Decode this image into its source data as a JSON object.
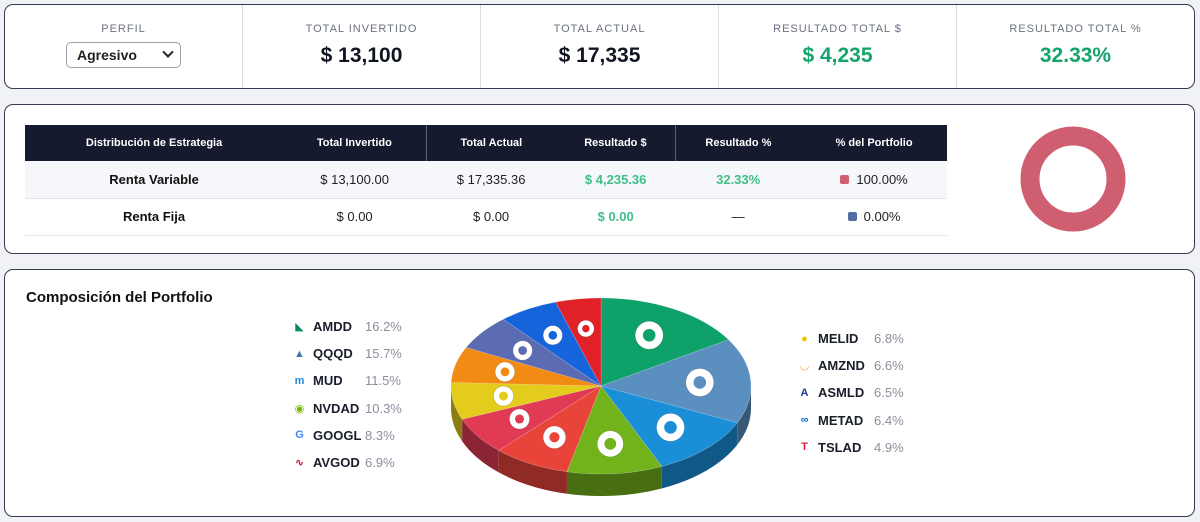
{
  "summary": {
    "perfil_label": "PERFIL",
    "perfil_value": "Agresivo",
    "total_invertido_label": "TOTAL INVERTIDO",
    "total_invertido_value": "$ 13,100",
    "total_actual_label": "TOTAL ACTUAL",
    "total_actual_value": "$ 17,335",
    "resultado_total_label": "RESULTADO TOTAL $",
    "resultado_total_value": "$ 4,235",
    "resultado_pct_label": "RESULTADO TOTAL %",
    "resultado_pct_value": "32.33%",
    "positive_color": "#13a36b"
  },
  "strategy": {
    "headers": [
      "Distribución de Estrategia",
      "Total Invertido",
      "Total Actual",
      "Resultado $",
      "Resultado %",
      "% del Portfolio"
    ],
    "rows": [
      {
        "name": "Renta Variable",
        "invertido": "$ 13,100.00",
        "actual": "$ 17,335.36",
        "resultado": "$ 4,235.36",
        "resultado_pct": "32.33%",
        "portfolio": "100.00%",
        "color": "#cf5f70"
      },
      {
        "name": "Renta Fija",
        "invertido": "$ 0.00",
        "actual": "$ 0.00",
        "resultado": "$ 0.00",
        "resultado_pct": "—",
        "portfolio": "0.00%",
        "color": "#4f6fa4"
      }
    ],
    "donut": {
      "values": [
        100,
        0
      ],
      "colors": [
        "#cf5f70",
        "#4f6fa4"
      ]
    }
  },
  "composition": {
    "title": "Composición del Portfolio",
    "legend_left": [
      {
        "ticker": "AMDD",
        "pct": "16.2%",
        "icon": "amd-logo-icon",
        "icon_color": "#0d8a5a"
      },
      {
        "ticker": "QQQD",
        "pct": "15.7%",
        "icon": "invesco-logo-icon",
        "icon_color": "#4a78a8"
      },
      {
        "ticker": "MUD",
        "pct": "11.5%",
        "icon": "micron-logo-icon",
        "icon_color": "#1e8fd6"
      },
      {
        "ticker": "NVDAD",
        "pct": "10.3%",
        "icon": "nvidia-logo-icon",
        "icon_color": "#76b900"
      },
      {
        "ticker": "GOOGL",
        "pct": "8.3%",
        "icon": "google-logo-icon",
        "icon_color": "#4285f4"
      },
      {
        "ticker": "AVGOD",
        "pct": "6.9%",
        "icon": "broadcom-logo-icon",
        "icon_color": "#cc092f"
      }
    ],
    "legend_right": [
      {
        "ticker": "MELID",
        "pct": "6.8%",
        "icon": "mercadolibre-logo-icon",
        "icon_color": "#e8c300"
      },
      {
        "ticker": "AMZND",
        "pct": "6.6%",
        "icon": "amazon-logo-icon",
        "icon_color": "#f3a847"
      },
      {
        "ticker": "ASMLD",
        "pct": "6.5%",
        "icon": "asml-logo-icon",
        "icon_color": "#1a3d8f"
      },
      {
        "ticker": "METAD",
        "pct": "6.4%",
        "icon": "meta-logo-icon",
        "icon_color": "#0668e1"
      },
      {
        "ticker": "TSLAD",
        "pct": "4.9%",
        "icon": "tesla-logo-icon",
        "icon_color": "#e31937"
      }
    ],
    "chart_data": {
      "type": "pie",
      "title": "Composición del Portfolio",
      "categories": [
        "AMDD",
        "QQQD",
        "MUD",
        "NVDAD",
        "GOOGL",
        "AVGOD",
        "MELID",
        "AMZND",
        "ASMLD",
        "METAD",
        "TSLAD"
      ],
      "values": [
        16.2,
        15.7,
        11.5,
        10.3,
        8.3,
        6.9,
        6.8,
        6.6,
        6.5,
        6.4,
        4.9
      ],
      "colors": [
        "#0fa16a",
        "#5a8fbf",
        "#1a8fd8",
        "#72b21a",
        "#e8443a",
        "#e03a54",
        "#e4cc1c",
        "#f28b13",
        "#5b6cb2",
        "#1564dc",
        "#e02128"
      ]
    }
  }
}
